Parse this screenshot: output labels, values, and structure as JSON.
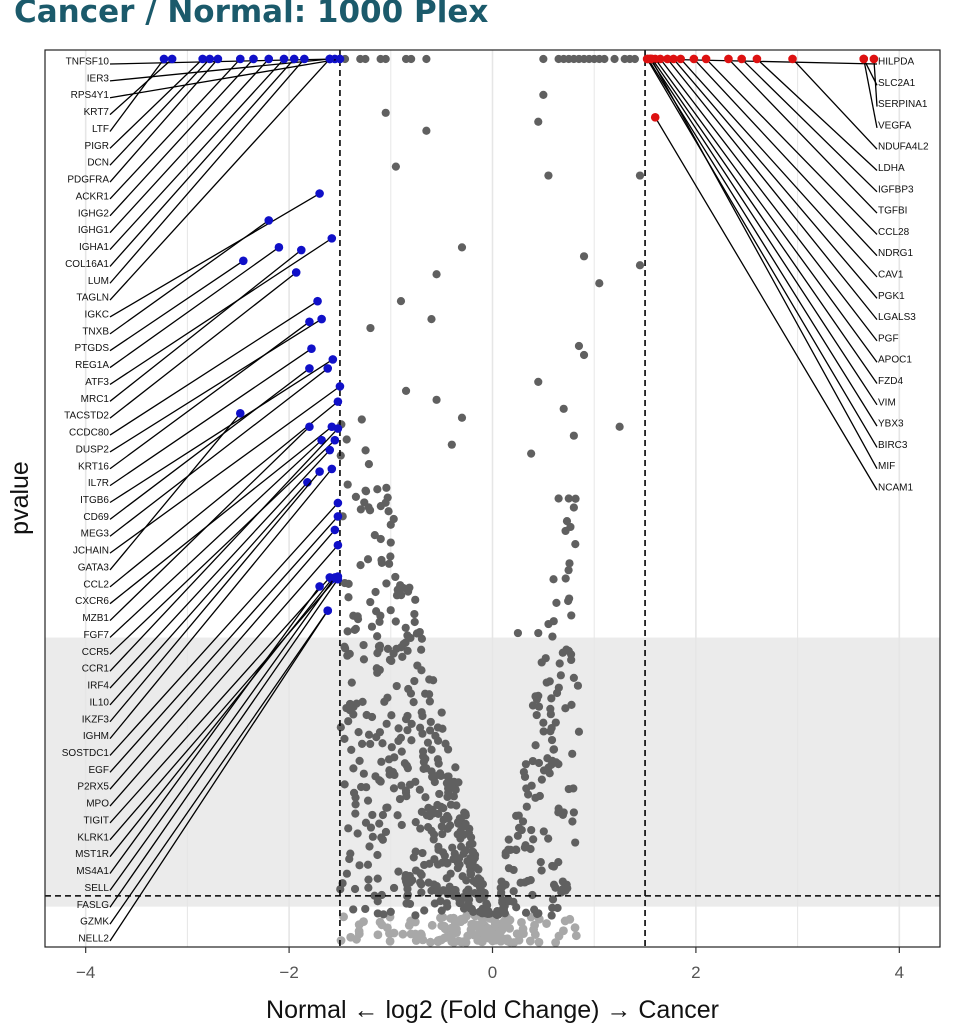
{
  "title": "Cancer / Normal: 1000 Plex",
  "chart_data": {
    "type": "scatter",
    "title": "Cancer / Normal: 1000 Plex",
    "xlabel": "Normal ← log2 (Fold Change) → Cancer",
    "ylabel": "pvalue",
    "xlim": [
      -4.4,
      4.4
    ],
    "xticks": [
      -4,
      -2,
      0,
      2,
      4
    ],
    "x_threshold": [
      -1.5,
      1.5
    ],
    "grid": true,
    "colors": {
      "down": "#1010c8",
      "up": "#dd1111",
      "ns": "#606060",
      "ns_light": "#a8a8a8",
      "band": "#ebebeb"
    },
    "down_genes": [
      {
        "name": "TNFSF10",
        "x": -1.55,
        "y": 0.99
      },
      {
        "name": "IER3",
        "x": -1.6,
        "y": 0.99
      },
      {
        "name": "RPS4Y1",
        "x": -1.5,
        "y": 0.99
      },
      {
        "name": "KRT7",
        "x": -3.15,
        "y": 0.99
      },
      {
        "name": "LTF",
        "x": -3.23,
        "y": 0.99
      },
      {
        "name": "PIGR",
        "x": -2.85,
        "y": 0.99
      },
      {
        "name": "DCN",
        "x": -2.78,
        "y": 0.99
      },
      {
        "name": "PDGFRA",
        "x": -2.7,
        "y": 0.99
      },
      {
        "name": "ACKR1",
        "x": -2.48,
        "y": 0.99
      },
      {
        "name": "IGHG2",
        "x": -2.35,
        "y": 0.99
      },
      {
        "name": "IGHG1",
        "x": -2.2,
        "y": 0.99
      },
      {
        "name": "IGHA1",
        "x": -2.05,
        "y": 0.99
      },
      {
        "name": "COL16A1",
        "x": -1.95,
        "y": 0.99
      },
      {
        "name": "LUM",
        "x": -1.85,
        "y": 0.99
      },
      {
        "name": "TAGLN",
        "x": -1.6,
        "y": 0.99
      },
      {
        "name": "IGKC",
        "x": -1.7,
        "y": 0.84
      },
      {
        "name": "TNXB",
        "x": -2.2,
        "y": 0.81
      },
      {
        "name": "PTGDS",
        "x": -2.45,
        "y": 0.765
      },
      {
        "name": "REG1A",
        "x": -2.1,
        "y": 0.78
      },
      {
        "name": "ATF3",
        "x": -1.58,
        "y": 0.79
      },
      {
        "name": "MRC1",
        "x": -1.88,
        "y": 0.777
      },
      {
        "name": "TACSTD2",
        "x": -1.93,
        "y": 0.752
      },
      {
        "name": "CCDC80",
        "x": -1.72,
        "y": 0.72
      },
      {
        "name": "DUSP2",
        "x": -1.68,
        "y": 0.7
      },
      {
        "name": "KRT16",
        "x": -1.8,
        "y": 0.697
      },
      {
        "name": "IL7R",
        "x": -1.78,
        "y": 0.667
      },
      {
        "name": "ITGB6",
        "x": -1.57,
        "y": 0.655
      },
      {
        "name": "CD69",
        "x": -1.8,
        "y": 0.645
      },
      {
        "name": "MEG3",
        "x": -1.62,
        "y": 0.645
      },
      {
        "name": "JCHAIN",
        "x": -1.5,
        "y": 0.625
      },
      {
        "name": "GATA3",
        "x": -2.48,
        "y": 0.595
      },
      {
        "name": "CCL2",
        "x": -1.52,
        "y": 0.608
      },
      {
        "name": "CXCR6",
        "x": -1.58,
        "y": 0.58
      },
      {
        "name": "MZB1",
        "x": -1.8,
        "y": 0.58
      },
      {
        "name": "FGF7",
        "x": -1.68,
        "y": 0.565
      },
      {
        "name": "CCR5",
        "x": -1.55,
        "y": 0.565
      },
      {
        "name": "CCR1",
        "x": -1.52,
        "y": 0.578
      },
      {
        "name": "IRF4",
        "x": -1.6,
        "y": 0.554
      },
      {
        "name": "IL10",
        "x": -1.82,
        "y": 0.518
      },
      {
        "name": "IKZF3",
        "x": -1.7,
        "y": 0.53
      },
      {
        "name": "IGHM",
        "x": -1.58,
        "y": 0.533
      },
      {
        "name": "SOSTDC1",
        "x": -1.52,
        "y": 0.495
      },
      {
        "name": "EGF",
        "x": -1.52,
        "y": 0.48
      },
      {
        "name": "P2RX5",
        "x": -1.55,
        "y": 0.465
      },
      {
        "name": "MPO",
        "x": -1.52,
        "y": 0.448
      },
      {
        "name": "TIGIT",
        "x": -1.6,
        "y": 0.412
      },
      {
        "name": "KLRK1",
        "x": -1.52,
        "y": 0.413
      },
      {
        "name": "MST1R",
        "x": -1.58,
        "y": 0.41
      },
      {
        "name": "MS4A1",
        "x": -1.7,
        "y": 0.402
      },
      {
        "name": "SELL",
        "x": -1.55,
        "y": 0.412
      },
      {
        "name": "FASLG",
        "x": -1.52,
        "y": 0.41
      },
      {
        "name": "GZMK",
        "x": -1.62,
        "y": 0.375
      },
      {
        "name": "NELL2",
        "x": -1.62,
        "y": 0.375
      }
    ],
    "up_genes": [
      {
        "name": "HILPDA",
        "x": 1.55,
        "y": 0.99
      },
      {
        "name": "SLC2A1",
        "x": 3.65,
        "y": 0.99
      },
      {
        "name": "SERPINA1",
        "x": 3.75,
        "y": 0.99
      },
      {
        "name": "VEGFA",
        "x": 3.65,
        "y": 0.99
      },
      {
        "name": "NDUFA4L2",
        "x": 2.95,
        "y": 0.99
      },
      {
        "name": "LDHA",
        "x": 2.6,
        "y": 0.99
      },
      {
        "name": "IGFBP3",
        "x": 2.45,
        "y": 0.99
      },
      {
        "name": "TGFBI",
        "x": 2.32,
        "y": 0.99
      },
      {
        "name": "CCL28",
        "x": 2.1,
        "y": 0.99
      },
      {
        "name": "NDRG1",
        "x": 1.98,
        "y": 0.99
      },
      {
        "name": "CAV1",
        "x": 1.85,
        "y": 0.99
      },
      {
        "name": "PGK1",
        "x": 1.78,
        "y": 0.99
      },
      {
        "name": "LGALS3",
        "x": 1.72,
        "y": 0.99
      },
      {
        "name": "PGF",
        "x": 1.65,
        "y": 0.99
      },
      {
        "name": "APOC1",
        "x": 1.6,
        "y": 0.99
      },
      {
        "name": "FZD4",
        "x": 1.57,
        "y": 0.99
      },
      {
        "name": "VIM",
        "x": 1.55,
        "y": 0.99
      },
      {
        "name": "YBX3",
        "x": 1.53,
        "y": 0.99
      },
      {
        "name": "BIRC3",
        "x": 1.52,
        "y": 0.99
      },
      {
        "name": "MIF",
        "x": 1.56,
        "y": 0.99
      },
      {
        "name": "NCAM1",
        "x": 1.6,
        "y": 0.925
      }
    ]
  }
}
